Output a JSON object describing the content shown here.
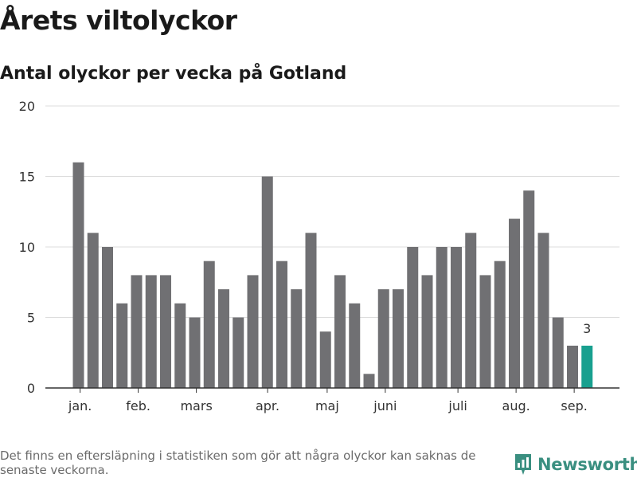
{
  "header": {
    "title": "Årets viltolyckor",
    "subtitle": "Antal olyckor per vecka på Gotland"
  },
  "footer": {
    "note": "Det finns en eftersläpning i statistiken som gör att några olyckor kan saknas de senaste veckorna.",
    "brand": "Newsworthy"
  },
  "colors": {
    "bar": "#707073",
    "highlight": "#18a08f",
    "grid": "#dddddd",
    "axis": "#333333",
    "brand": "#3a8f80"
  },
  "chart_data": {
    "type": "bar",
    "title": "Årets viltolyckor",
    "subtitle": "Antal olyckor per vecka på Gotland",
    "values": [
      16,
      11,
      10,
      6,
      8,
      8,
      8,
      6,
      5,
      9,
      7,
      5,
      8,
      15,
      9,
      7,
      11,
      4,
      8,
      6,
      1,
      7,
      7,
      10,
      8,
      10,
      10,
      11,
      8,
      9,
      12,
      14,
      11,
      5,
      3,
      3
    ],
    "highlight_index": 35,
    "highlight_label": "3",
    "ylim": [
      0,
      20
    ],
    "yticks": [
      0,
      5,
      10,
      15,
      20
    ],
    "xtick_labels": [
      {
        "label": "jan.",
        "index": 0.5
      },
      {
        "label": "feb.",
        "index": 4.5
      },
      {
        "label": "mars",
        "index": 8.5
      },
      {
        "label": "apr.",
        "index": 13.4
      },
      {
        "label": "maj",
        "index": 17.5
      },
      {
        "label": "juni",
        "index": 21.5
      },
      {
        "label": "juli",
        "index": 26.5
      },
      {
        "label": "aug.",
        "index": 30.5
      },
      {
        "label": "sep.",
        "index": 34.5
      }
    ],
    "grid": true,
    "xlabel": "",
    "ylabel": ""
  }
}
